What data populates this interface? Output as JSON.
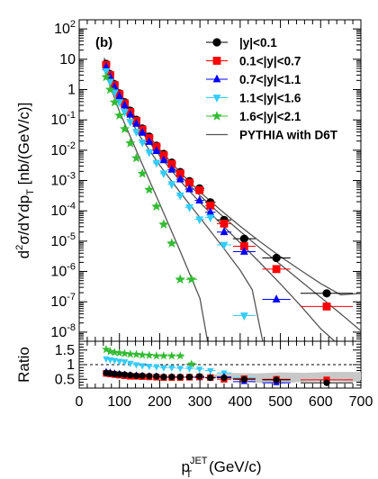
{
  "chart_data": {
    "type": "scatter",
    "panel_label": "(b)",
    "xlabel": "p_T^JET (GeV/c)",
    "xlabel_parts": {
      "main": "p",
      "sub": "T",
      "sup": "JET",
      "unit": " (GeV/c)"
    },
    "ylabel_top_parts": {
      "a": "d",
      "sup": "2",
      "b": "σ/dYdp",
      "sub": "T",
      "c": " [nb/(GeV/c)]"
    },
    "ylabel_bottom": "Ratio",
    "xlim": [
      0,
      700
    ],
    "x_ticks": [
      0,
      100,
      200,
      300,
      400,
      500,
      600,
      700
    ],
    "top": {
      "scale": "log",
      "ylim": [
        5e-09,
        200
      ],
      "y_ticks": [
        {
          "value": 100,
          "mantissa": "10",
          "exp": "2"
        },
        {
          "value": 10,
          "mantissa": "10",
          "exp": ""
        },
        {
          "value": 1,
          "mantissa": "1",
          "exp": ""
        },
        {
          "value": 0.1,
          "mantissa": "10",
          "exp": "-1"
        },
        {
          "value": 0.01,
          "mantissa": "10",
          "exp": "-2"
        },
        {
          "value": 0.001,
          "mantissa": "10",
          "exp": "-3"
        },
        {
          "value": 0.0001,
          "mantissa": "10",
          "exp": "-4"
        },
        {
          "value": 1e-05,
          "mantissa": "10",
          "exp": "-5"
        },
        {
          "value": 1e-06,
          "mantissa": "10",
          "exp": "-6"
        },
        {
          "value": 1e-07,
          "mantissa": "10",
          "exp": "-7"
        },
        {
          "value": 1e-08,
          "mantissa": "10",
          "exp": "-8"
        }
      ],
      "series": [
        {
          "name": "|y|<0.1",
          "marker": "circle",
          "color": "#000000",
          "x": [
            67,
            77,
            88,
            100,
            113,
            127,
            142,
            157,
            174,
            192,
            210,
            230,
            251,
            274,
            299,
            326,
            360,
            410,
            490,
            615
          ],
          "y": [
            7,
            3.2,
            1.5,
            0.75,
            0.38,
            0.2,
            0.1,
            0.052,
            0.028,
            0.014,
            0.0075,
            0.0039,
            0.0019,
            0.00095,
            0.00055,
            0.00019,
            5e-05,
            1.2e-05,
            2.8e-06,
            1.9e-07
          ],
          "xerr": [
            5,
            5,
            5,
            6,
            6,
            7,
            7,
            8,
            8,
            9,
            9,
            10,
            10,
            11,
            12,
            13,
            18,
            28,
            35,
            65
          ]
        },
        {
          "name": "0.1<|y|<0.7",
          "marker": "square",
          "color": "#ff0000",
          "x": [
            67,
            77,
            88,
            100,
            113,
            127,
            142,
            157,
            174,
            192,
            210,
            230,
            251,
            274,
            299,
            326,
            360,
            410,
            490,
            615
          ],
          "y": [
            6.5,
            3.0,
            1.4,
            0.7,
            0.35,
            0.18,
            0.092,
            0.048,
            0.025,
            0.013,
            0.0068,
            0.0035,
            0.0017,
            0.00085,
            0.00048,
            0.00015,
            3.8e-05,
            6.8e-06,
            1.2e-06,
            7e-08
          ],
          "xerr": [
            5,
            5,
            5,
            6,
            6,
            7,
            7,
            8,
            8,
            9,
            9,
            10,
            10,
            11,
            12,
            13,
            18,
            28,
            35,
            65
          ]
        },
        {
          "name": "0.7<|y|<1.1",
          "marker": "triangle-up",
          "color": "#0000ff",
          "x": [
            67,
            77,
            88,
            100,
            113,
            127,
            142,
            157,
            174,
            192,
            210,
            230,
            251,
            274,
            299,
            326,
            360,
            410,
            490
          ],
          "y": [
            5.5,
            2.6,
            1.2,
            0.6,
            0.3,
            0.15,
            0.075,
            0.038,
            0.019,
            0.0095,
            0.0047,
            0.0023,
            0.0011,
            0.00052,
            0.00022,
            9e-05,
            2e-05,
            4.5e-06,
            1.2e-07
          ],
          "xerr": [
            5,
            5,
            5,
            6,
            6,
            7,
            7,
            8,
            8,
            9,
            9,
            10,
            10,
            11,
            12,
            13,
            18,
            28,
            35
          ]
        },
        {
          "name": "1.1<|y|<1.6",
          "marker": "triangle-down",
          "color": "#33ccff",
          "x": [
            67,
            77,
            88,
            100,
            113,
            127,
            142,
            157,
            174,
            192,
            210,
            230,
            251,
            274,
            299,
            326,
            360,
            410
          ],
          "y": [
            4.0,
            1.8,
            0.8,
            0.38,
            0.18,
            0.085,
            0.04,
            0.018,
            0.0085,
            0.0038,
            0.0017,
            0.00075,
            0.00032,
            0.00013,
            5.2e-05,
            6e-05,
            7.5e-06,
            3.5e-08
          ],
          "xerr": [
            5,
            5,
            5,
            6,
            6,
            7,
            7,
            8,
            8,
            9,
            9,
            10,
            10,
            11,
            12,
            13,
            18,
            28
          ]
        },
        {
          "name": "1.6<|y|<2.1",
          "marker": "star",
          "color": "#33bb33",
          "x": [
            67,
            77,
            88,
            100,
            113,
            127,
            142,
            157,
            174,
            192,
            210,
            230,
            251,
            279
          ],
          "y": [
            2.6,
            1.0,
            0.38,
            0.14,
            0.05,
            0.017,
            0.0055,
            0.0017,
            0.0005,
            0.00014,
            3.6e-05,
            8.5e-06,
            5.5e-07,
            5.5e-07
          ],
          "xerr": [
            5,
            5,
            5,
            6,
            6,
            7,
            7,
            8,
            8,
            9,
            9,
            10,
            10,
            14
          ]
        }
      ],
      "theory": {
        "name": "PYTHIA with D6T",
        "color": "#555555",
        "curves": [
          {
            "x": [
              62,
              100,
              150,
              200,
              250,
              300,
              350,
              400,
              450,
              500,
              550,
              600,
              650,
              700
            ],
            "y": [
              11,
              0.83,
              0.073,
              0.0105,
              0.0019,
              0.00042,
              0.00011,
              3.1e-05,
              9.5e-06,
              3.1e-06,
              1.1e-06,
              4e-07,
              1.7e-07,
              1.9e-07
            ]
          },
          {
            "x": [
              62,
              100,
              150,
              200,
              250,
              300,
              350,
              400,
              450,
              500,
              550,
              600,
              650,
              700
            ],
            "y": [
              10,
              0.75,
              0.062,
              0.0087,
              0.0015,
              0.00032,
              7.9e-05,
              2.1e-05,
              5.8e-06,
              1.7e-06,
              4.9e-07,
              1.4e-07,
              4e-08,
              1.1e-08
            ]
          },
          {
            "x": [
              62,
              100,
              150,
              200,
              250,
              300,
              350,
              400,
              450,
              500,
              550,
              600,
              635
            ],
            "y": [
              9,
              0.65,
              0.05,
              0.0065,
              0.001,
              0.00019,
              4e-05,
              8.8e-06,
              1.9e-06,
              3.9e-07,
              7.5e-08,
              1.3e-08,
              5e-09
            ]
          },
          {
            "x": [
              62,
              100,
              150,
              200,
              250,
              300,
              350,
              400,
              430,
              456
            ],
            "y": [
              7,
              0.45,
              0.03,
              0.0032,
              0.00042,
              6e-05,
              8.4e-06,
              1.1e-06,
              2.5e-07,
              5e-09
            ]
          },
          {
            "x": [
              62,
              100,
              150,
              200,
              250,
              300,
              319
            ],
            "y": [
              4.5,
              0.19,
              0.0055,
              0.00017,
              5e-06,
              1.3e-07,
              5e-09
            ]
          }
        ]
      }
    },
    "bottom": {
      "scale": "linear",
      "ylim": [
        0.2,
        1.8
      ],
      "y_ticks": [
        1.5,
        1.0,
        0.5
      ],
      "y_tick_labels": [
        "1.5",
        "1",
        "0.5"
      ],
      "reference_line": 1.0,
      "band_upper": {
        "x": [
          320,
          380,
          440,
          500,
          560,
          620,
          700
        ],
        "y": [
          0.65,
          0.72,
          0.7,
          0.74,
          0.72,
          0.75,
          0.75
        ]
      },
      "band_lower": {
        "x": [
          320,
          380,
          440,
          500,
          560,
          620,
          700
        ],
        "y": [
          0.58,
          0.5,
          0.38,
          0.35,
          0.42,
          0.44,
          0.42
        ]
      },
      "series": [
        {
          "name": "|y|<0.1",
          "x": [
            67,
            77,
            88,
            100,
            113,
            127,
            142,
            157,
            174,
            192,
            210,
            230,
            251,
            274,
            299,
            326,
            360,
            410,
            490,
            615
          ],
          "y": [
            0.72,
            0.7,
            0.68,
            0.67,
            0.66,
            0.64,
            0.62,
            0.62,
            0.61,
            0.6,
            0.58,
            0.58,
            0.58,
            0.58,
            0.6,
            0.55,
            0.55,
            0.5,
            0.48,
            0.38
          ]
        },
        {
          "name": "0.1<|y|<0.7",
          "x": [
            67,
            77,
            88,
            100,
            113,
            127,
            142,
            157,
            174,
            192,
            210,
            230,
            251,
            274,
            299,
            326,
            360,
            410,
            490,
            615
          ],
          "y": [
            0.7,
            0.68,
            0.66,
            0.64,
            0.62,
            0.6,
            0.6,
            0.59,
            0.58,
            0.57,
            0.56,
            0.56,
            0.56,
            0.57,
            0.58,
            0.56,
            0.5,
            0.52,
            0.5,
            0.48
          ]
        },
        {
          "name": "0.7<|y|<1.1",
          "x": [
            67,
            77,
            88,
            100,
            113,
            127,
            142,
            157,
            174,
            192,
            210,
            230,
            251,
            274,
            299,
            326,
            360,
            410,
            490
          ],
          "y": [
            0.75,
            0.73,
            0.7,
            0.68,
            0.66,
            0.64,
            0.63,
            0.62,
            0.6,
            0.6,
            0.58,
            0.58,
            0.57,
            0.56,
            0.55,
            0.56,
            0.58,
            0.42,
            0.38
          ]
        },
        {
          "name": "1.1<|y|<1.6",
          "x": [
            67,
            77,
            88,
            100,
            113,
            127,
            142,
            157,
            174,
            192,
            210,
            230,
            251,
            274,
            299,
            326,
            360,
            410
          ],
          "y": [
            1.2,
            1.17,
            1.15,
            1.12,
            1.1,
            1.05,
            1.0,
            0.97,
            0.95,
            0.93,
            0.9,
            0.9,
            0.88,
            0.87,
            0.85,
            0.8,
            0.72,
            0.55
          ]
        },
        {
          "name": "1.6<|y|<2.1",
          "x": [
            67,
            77,
            88,
            100,
            113,
            127,
            142,
            157,
            174,
            192,
            210,
            230,
            251,
            279
          ],
          "y": [
            1.52,
            1.45,
            1.42,
            1.4,
            1.38,
            1.36,
            1.35,
            1.33,
            1.32,
            1.3,
            1.3,
            1.3,
            1.3,
            1.02
          ]
        }
      ]
    }
  }
}
